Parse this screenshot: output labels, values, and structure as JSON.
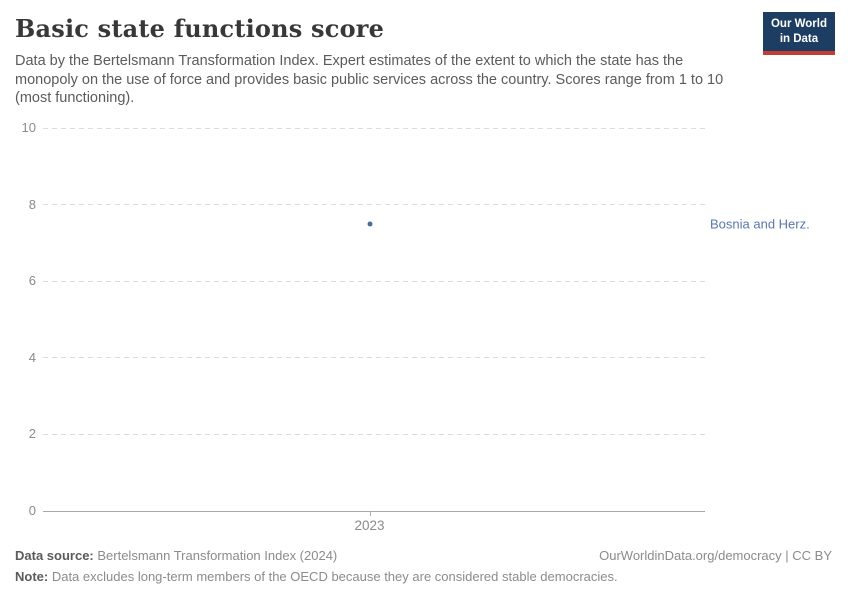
{
  "header": {
    "title": "Basic state functions score",
    "subtitle": "Data by the Bertelsmann Transformation Index. Expert estimates of the extent to which the state has the monopoly on the use of force and provides basic public services across the country. Scores range from 1 to 10 (most functioning).",
    "logo": {
      "line1": "Our World",
      "line2": "in Data",
      "bg_color": "#1d3d63",
      "stripe_color": "#c53c32"
    }
  },
  "chart_data": {
    "type": "scatter",
    "title": "Basic state functions score",
    "series": [
      {
        "name": "Bosnia and Herz.",
        "color": "#4c6a9c",
        "points": [
          {
            "x": 2023,
            "y": 7.5
          }
        ]
      }
    ],
    "entity_label": "Bosnia and Herz.",
    "entity_label_color": "#5878ad",
    "xticks": [
      "2023"
    ],
    "yticks": [
      0,
      2,
      4,
      6,
      8,
      10
    ],
    "ylim": [
      0,
      10
    ],
    "xlabel": "",
    "ylabel": "",
    "grid": "horizontal-dashed",
    "legend_position": "right-of-point"
  },
  "footer": {
    "source_label": "Data source:",
    "source_value": " Bertelsmann Transformation Index (2024)",
    "attribution": "OurWorldinData.org/democracy | CC BY",
    "note_label": "Note:",
    "note_value": " Data excludes long-term members of the OECD because they are considered stable democracies."
  }
}
